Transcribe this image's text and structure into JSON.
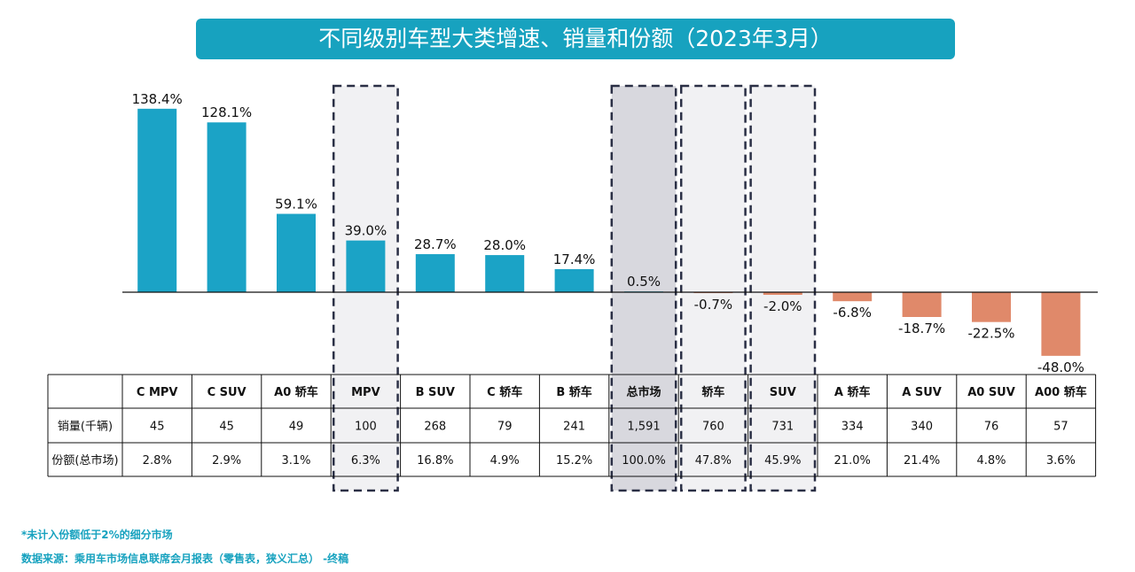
{
  "title": "不同级别车型大类增速、销量和份额（2023年3月）",
  "colors": {
    "positive": "#1ba3c6",
    "negative": "#e0896a",
    "title_bg": "#17a2bf",
    "highlight": "#f1f1f3",
    "highlight_total": "#d8d8de"
  },
  "chart_data": {
    "type": "bar",
    "title": "不同级别车型大类增速、销量和份额（2023年3月）",
    "categories": [
      "C MPV",
      "C SUV",
      "A0 轿车",
      "MPV",
      "B SUV",
      "C 轿车",
      "B 轿车",
      "总市场",
      "轿车",
      "SUV",
      "A 轿车",
      "A SUV",
      "A0 SUV",
      "A00 轿车"
    ],
    "series": [
      {
        "name": "增速",
        "values": [
          138.4,
          128.1,
          59.1,
          39.0,
          28.7,
          28.0,
          17.4,
          0.5,
          -0.7,
          -2.0,
          -6.8,
          -18.7,
          -22.5,
          -48.0
        ]
      }
    ],
    "value_labels": [
      "138.4%",
      "128.1%",
      "59.1%",
      "39.0%",
      "28.7%",
      "28.0%",
      "17.4%",
      "0.5%",
      "-0.7%",
      "-2.0%",
      "-6.8%",
      "-18.7%",
      "-22.5%",
      "-48.0%"
    ],
    "highlighted": [
      "MPV",
      "总市场",
      "轿车",
      "SUV"
    ],
    "table": {
      "row_labels": [
        "销量(千辆)",
        "份额(总市场)"
      ],
      "sales": [
        "45",
        "45",
        "49",
        "100",
        "268",
        "79",
        "241",
        "1,591",
        "760",
        "731",
        "334",
        "340",
        "76",
        "57"
      ],
      "share": [
        "2.8%",
        "2.9%",
        "3.1%",
        "6.3%",
        "16.8%",
        "4.9%",
        "15.2%",
        "100.0%",
        "47.8%",
        "45.9%",
        "21.0%",
        "21.4%",
        "4.8%",
        "3.6%"
      ]
    }
  },
  "footnote": "*未计入份额低于2%的细分市场",
  "source": "数据来源：乘用车市场信息联席会月报表（零售表，狭义汇总） -终稿"
}
